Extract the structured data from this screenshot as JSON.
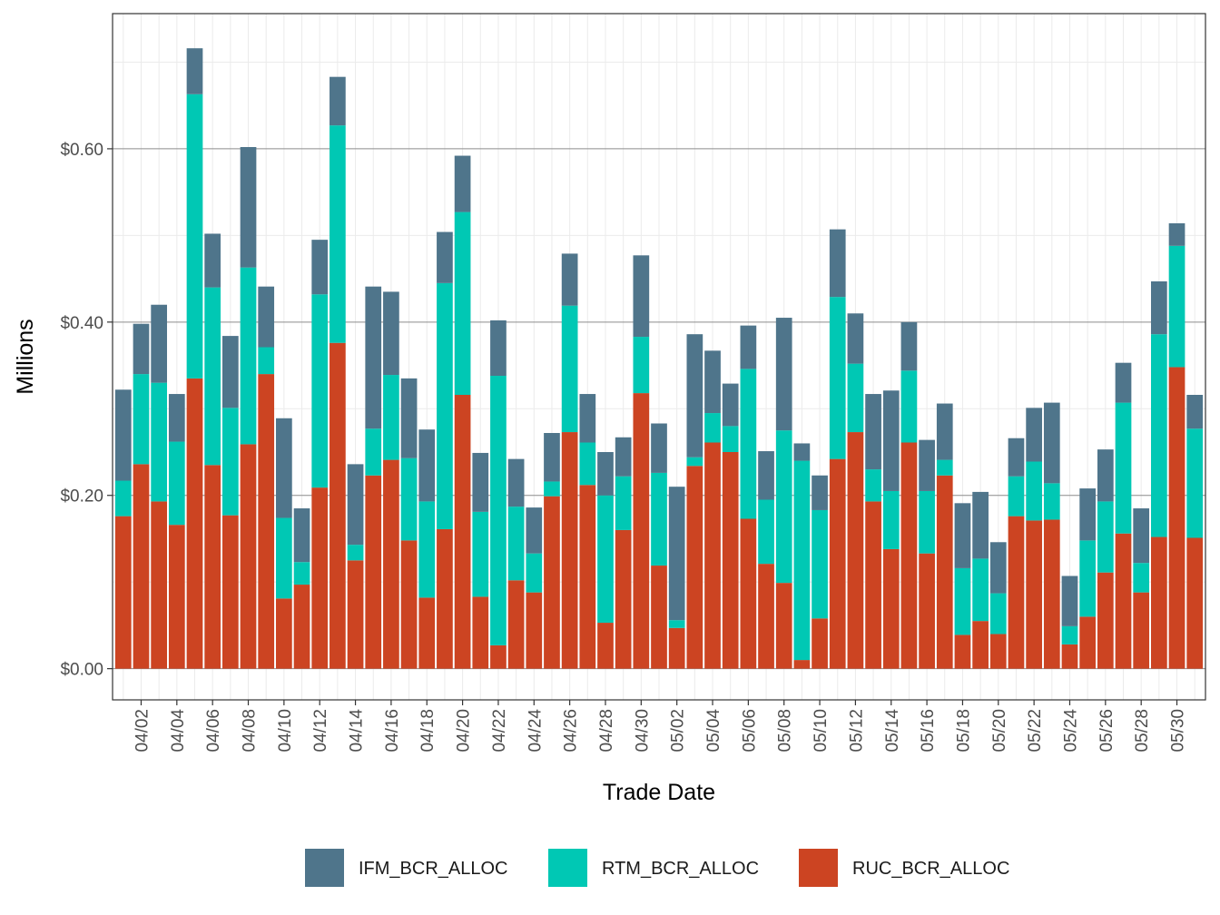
{
  "chart_data": {
    "type": "bar",
    "stacked": true,
    "xlabel": "Trade Date",
    "ylabel": "Millions",
    "ylim": [
      -0.036,
      0.756
    ],
    "y_ticks": [
      {
        "value": 0.0,
        "label": "$0.00"
      },
      {
        "value": 0.2,
        "label": "$0.20"
      },
      {
        "value": 0.4,
        "label": "$0.40"
      },
      {
        "value": 0.6,
        "label": "$0.60"
      }
    ],
    "grid": true,
    "legend_position": "bottom",
    "categories": [
      "04/01",
      "04/02",
      "04/03",
      "04/04",
      "04/05",
      "04/06",
      "04/07",
      "04/08",
      "04/09",
      "04/10",
      "04/11",
      "04/12",
      "04/13",
      "04/14",
      "04/15",
      "04/16",
      "04/17",
      "04/18",
      "04/19",
      "04/20",
      "04/21",
      "04/22",
      "04/23",
      "04/24",
      "04/25",
      "04/26",
      "04/27",
      "04/28",
      "04/29",
      "04/30",
      "05/01",
      "05/02",
      "05/03",
      "05/04",
      "05/05",
      "05/06",
      "05/07",
      "05/08",
      "05/09",
      "05/10",
      "05/11",
      "05/12",
      "05/13",
      "05/14",
      "05/15",
      "05/16",
      "05/17",
      "05/18",
      "05/19",
      "05/20",
      "05/21",
      "05/22",
      "05/23",
      "05/24",
      "05/25",
      "05/26",
      "05/27",
      "05/28",
      "05/29",
      "05/30",
      "05/31"
    ],
    "x_tick_labels": [
      "04/02",
      "04/04",
      "04/06",
      "04/08",
      "04/10",
      "04/12",
      "04/14",
      "04/16",
      "04/18",
      "04/20",
      "04/22",
      "04/24",
      "04/26",
      "04/28",
      "04/30",
      "05/02",
      "05/04",
      "05/06",
      "05/08",
      "05/10",
      "05/12",
      "05/14",
      "05/16",
      "05/18",
      "05/20",
      "05/22",
      "05/24",
      "05/26",
      "05/28",
      "05/30"
    ],
    "series": [
      {
        "name": "RUC_BCR_ALLOC",
        "color": "#cc4422",
        "values": [
          0.176,
          0.236,
          0.193,
          0.166,
          0.335,
          0.235,
          0.177,
          0.259,
          0.34,
          0.081,
          0.097,
          0.209,
          0.376,
          0.125,
          0.223,
          0.241,
          0.148,
          0.082,
          0.161,
          0.316,
          0.083,
          0.027,
          0.102,
          0.088,
          0.199,
          0.273,
          0.212,
          0.053,
          0.16,
          0.318,
          0.119,
          0.047,
          0.234,
          0.261,
          0.25,
          0.173,
          0.121,
          0.099,
          0.01,
          0.058,
          0.242,
          0.273,
          0.193,
          0.138,
          0.261,
          0.133,
          0.223,
          0.039,
          0.055,
          0.04,
          0.176,
          0.171,
          0.172,
          0.028,
          0.06,
          0.111,
          0.156,
          0.088,
          0.152,
          0.348,
          0.151
        ]
      },
      {
        "name": "RTM_BCR_ALLOC",
        "color": "#00c8b4",
        "values": [
          0.041,
          0.104,
          0.137,
          0.096,
          0.328,
          0.205,
          0.124,
          0.204,
          0.031,
          0.093,
          0.026,
          0.223,
          0.251,
          0.018,
          0.054,
          0.098,
          0.095,
          0.111,
          0.284,
          0.211,
          0.098,
          0.311,
          0.085,
          0.045,
          0.017,
          0.146,
          0.049,
          0.147,
          0.062,
          0.065,
          0.107,
          0.009,
          0.01,
          0.034,
          0.03,
          0.173,
          0.074,
          0.176,
          0.23,
          0.125,
          0.187,
          0.079,
          0.037,
          0.067,
          0.083,
          0.072,
          0.018,
          0.077,
          0.072,
          0.047,
          0.046,
          0.068,
          0.042,
          0.021,
          0.088,
          0.082,
          0.151,
          0.034,
          0.234,
          0.14,
          0.126
        ]
      },
      {
        "name": "IFM_BCR_ALLOC",
        "color": "#4f758b",
        "values": [
          0.105,
          0.058,
          0.09,
          0.055,
          0.053,
          0.062,
          0.083,
          0.139,
          0.07,
          0.115,
          0.062,
          0.063,
          0.056,
          0.093,
          0.164,
          0.096,
          0.092,
          0.083,
          0.059,
          0.065,
          0.068,
          0.064,
          0.055,
          0.053,
          0.056,
          0.06,
          0.056,
          0.05,
          0.045,
          0.094,
          0.057,
          0.154,
          0.142,
          0.072,
          0.049,
          0.05,
          0.056,
          0.13,
          0.02,
          0.04,
          0.078,
          0.058,
          0.087,
          0.116,
          0.056,
          0.059,
          0.065,
          0.075,
          0.077,
          0.059,
          0.044,
          0.062,
          0.093,
          0.058,
          0.06,
          0.06,
          0.046,
          0.063,
          0.061,
          0.026,
          0.039
        ]
      }
    ],
    "legend_order": [
      "IFM_BCR_ALLOC",
      "RTM_BCR_ALLOC",
      "RUC_BCR_ALLOC"
    ]
  }
}
